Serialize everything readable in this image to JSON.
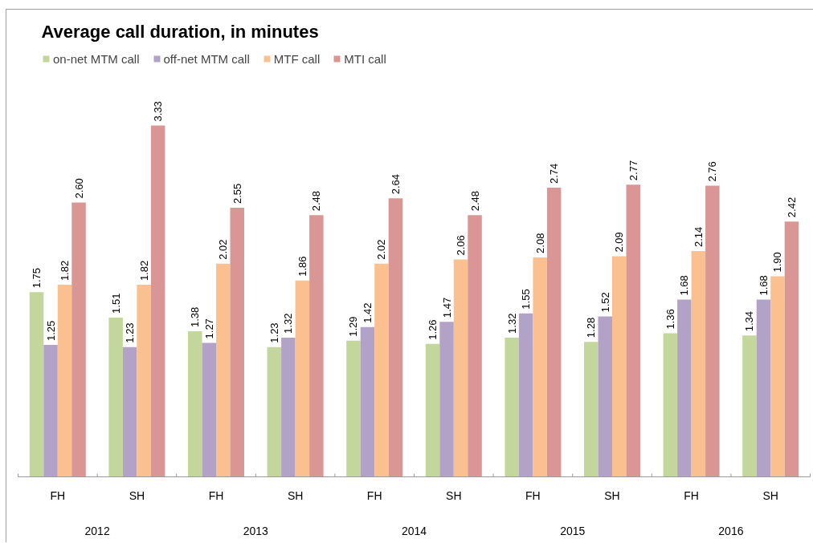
{
  "chart_data": {
    "type": "bar",
    "title": "Average call duration, in minutes",
    "categories": [
      "FH",
      "SH",
      "FH",
      "SH",
      "FH",
      "SH",
      "FH",
      "SH",
      "FH",
      "SH"
    ],
    "series": [
      {
        "name": "on-net MTM call",
        "color": "#c3d69b",
        "values": [
          1.75,
          1.51,
          1.38,
          1.23,
          1.29,
          1.26,
          1.32,
          1.28,
          1.36,
          1.34
        ],
        "value_labels": [
          "1.75",
          "1.51",
          "1.38",
          "1.23",
          "1.29",
          "1.26",
          "1.32",
          "1.28",
          "1.36",
          "1.34"
        ]
      },
      {
        "name": "off-net MTM call",
        "color": "#b3a2c7",
        "values": [
          1.25,
          1.23,
          1.27,
          1.32,
          1.42,
          1.47,
          1.55,
          1.52,
          1.68,
          1.68
        ],
        "value_labels": [
          "1.25",
          "1.23",
          "1.27",
          "1.32",
          "1.42",
          "1.47",
          "1.55",
          "1.52",
          "1.68",
          "1.68"
        ]
      },
      {
        "name": "MTF call",
        "color": "#fac090",
        "values": [
          1.82,
          1.82,
          2.02,
          1.86,
          2.02,
          2.06,
          2.08,
          2.09,
          2.14,
          1.9
        ],
        "value_labels": [
          "1.82",
          "1.82",
          "2.02",
          "1.86",
          "2.02",
          "2.06",
          "2.08",
          "2.09",
          "2.14",
          "1.90"
        ]
      },
      {
        "name": "MTI call",
        "color": "#d99694",
        "values": [
          2.6,
          3.33,
          2.55,
          2.48,
          2.64,
          2.48,
          2.74,
          2.77,
          2.76,
          2.42
        ],
        "value_labels": [
          "2.60",
          "3.33",
          "2.55",
          "2.48",
          "2.64",
          "2.48",
          "2.74",
          "2.77",
          "2.76",
          "2.42"
        ]
      }
    ],
    "annotations": [
      "2012",
      "2013",
      "2014",
      "2015",
      "2016"
    ],
    "legend": "top left"
  }
}
